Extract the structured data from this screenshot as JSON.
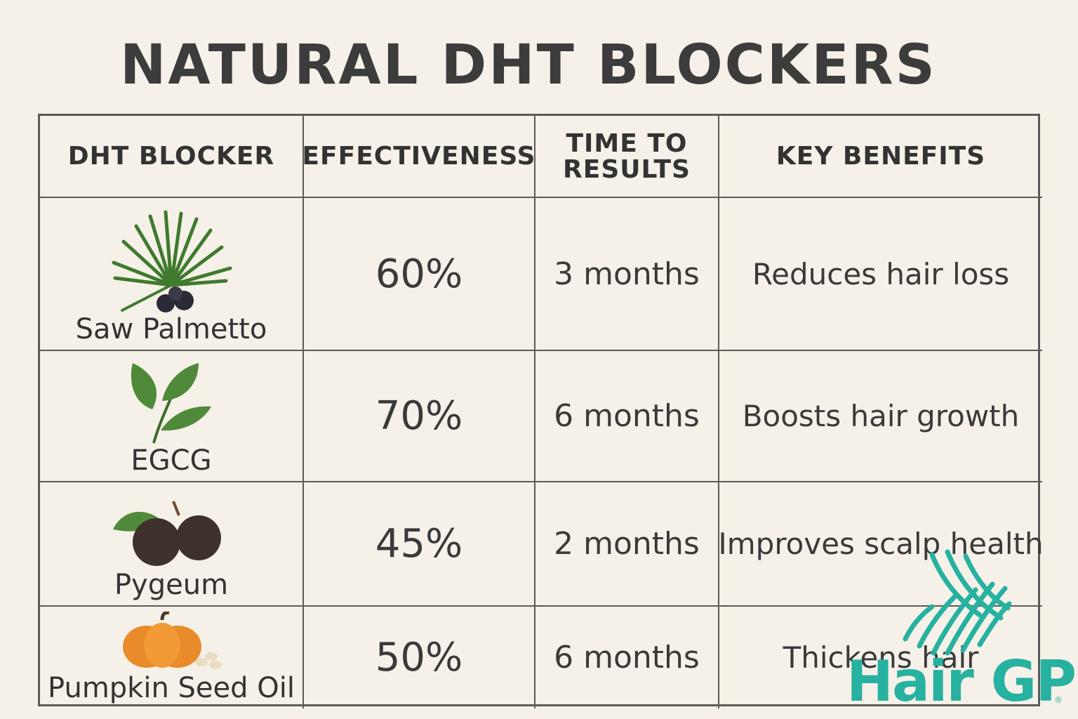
{
  "title": "NATURAL DHT BLOCKERS",
  "chart_data": {
    "type": "table",
    "columns": [
      "DHT BLOCKER",
      "EFFECTIVENESS",
      "TIME TO\nRESULTS",
      "KEY BENEFITS"
    ],
    "rows": [
      {
        "blocker": "Saw Palmetto",
        "icon": "saw-palmetto-icon",
        "effectiveness": "60%",
        "time": "3 months",
        "benefit": "Reduces hair loss"
      },
      {
        "blocker": "EGCG",
        "icon": "green-tea-leaf-icon",
        "effectiveness": "70%",
        "time": "6 months",
        "benefit": "Boosts hair growth"
      },
      {
        "blocker": "Pygeum",
        "icon": "pygeum-fruit-icon",
        "effectiveness": "45%",
        "time": "2 months",
        "benefit": "Improves scalp health"
      },
      {
        "blocker": "Pumpkin Seed Oil",
        "icon": "pumpkin-icon",
        "effectiveness": "50%",
        "time": "6 months",
        "benefit": "Thickens hair"
      }
    ],
    "effectiveness_values": [
      60,
      70,
      45,
      50
    ]
  },
  "brand": {
    "logo_text": "Hair GP",
    "registered": "®",
    "color": "#27b1a0"
  },
  "colors": {
    "background": "#f6f1e8",
    "grid": "#5a5a5a",
    "text": "#3a3a3a"
  }
}
